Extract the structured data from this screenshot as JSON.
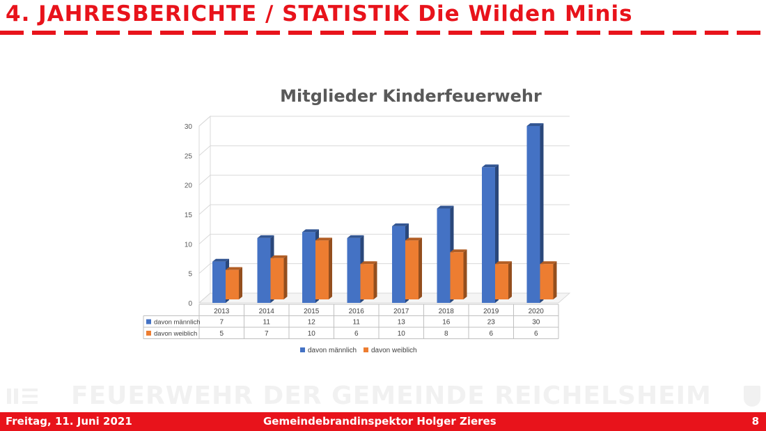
{
  "header": {
    "title": "4. JAHRESBERICHTE / STATISTIK Die Wilden Minis"
  },
  "watermark": {
    "text": "FEUERWEHR DER GEMEINDE REICHELSHEIM"
  },
  "footer": {
    "date": "Freitag, 11. Juni 2021",
    "presenter": "Gemeindebrandinspektor Holger Zieres",
    "page": "8"
  },
  "colors": {
    "accent": "#e8131b",
    "male": "#4472c4",
    "female": "#ed7d31"
  },
  "chart_data": {
    "type": "bar",
    "title": "Mitglieder Kinderfeuerwehr",
    "categories": [
      "2013",
      "2014",
      "2015",
      "2016",
      "2017",
      "2018",
      "2019",
      "2020"
    ],
    "series": [
      {
        "name": "davon männlich",
        "values": [
          7,
          11,
          12,
          11,
          13,
          16,
          23,
          30
        ],
        "color": "#4472c4"
      },
      {
        "name": "davon weiblich",
        "values": [
          5,
          7,
          10,
          6,
          10,
          8,
          6,
          6
        ],
        "color": "#ed7d31"
      }
    ],
    "ylim": [
      0,
      30
    ],
    "yticks": [
      0,
      5,
      10,
      15,
      20,
      25,
      30
    ],
    "grid": true,
    "legend": "bottom",
    "data_table": true
  }
}
